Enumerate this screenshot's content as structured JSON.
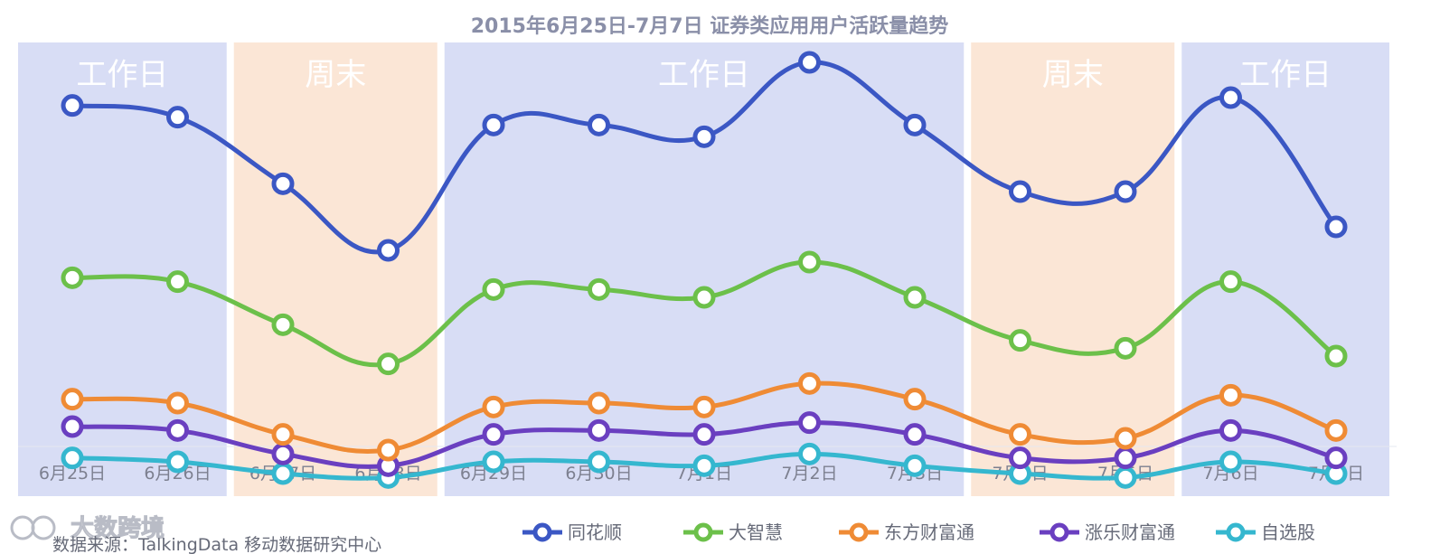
{
  "chart_data": {
    "type": "line",
    "title": "2015年6月25日-7月7日  证券类应用用户活跃量趋势",
    "categories": [
      "6月25日",
      "6月26日",
      "6月27日",
      "6月28日",
      "6月29日",
      "6月30日",
      "7月1日",
      "7月2日",
      "7月3日",
      "7月4日",
      "7月5日",
      "7月6日",
      "7月7日"
    ],
    "series": [
      {
        "name": "同花顺",
        "color": "#3b57c4",
        "values": [
          100,
          97,
          80,
          63,
          95,
          95,
          92,
          111,
          95,
          78,
          78,
          102,
          69
        ]
      },
      {
        "name": "大智慧",
        "color": "#6cc04a",
        "values": [
          56,
          55,
          44,
          34,
          53,
          53,
          51,
          60,
          51,
          40,
          38,
          55,
          36
        ]
      },
      {
        "name": "东方财富通",
        "color": "#ef8b35",
        "values": [
          25,
          24,
          16,
          12,
          23,
          24,
          23,
          29,
          25,
          16,
          15,
          26,
          17
        ]
      },
      {
        "name": "涨乐财富通",
        "color": "#6a3fc0",
        "values": [
          18,
          17,
          11,
          8,
          16,
          17,
          16,
          19,
          16,
          10,
          10,
          17,
          10
        ]
      },
      {
        "name": "自选股",
        "color": "#35b7cf",
        "values": [
          10,
          9,
          6,
          5,
          9,
          9,
          8,
          11,
          8,
          6,
          5,
          9,
          6
        ]
      }
    ],
    "bands": [
      {
        "label": "工作日",
        "type": "workday",
        "from": 0,
        "to": 1
      },
      {
        "label": "周末",
        "type": "weekend",
        "from": 2,
        "to": 3
      },
      {
        "label": "工作日",
        "type": "workday",
        "from": 4,
        "to": 8
      },
      {
        "label": "周末",
        "type": "weekend",
        "from": 9,
        "to": 10
      },
      {
        "label": "工作日",
        "type": "workday",
        "from": 11,
        "to": 12
      }
    ],
    "colors": {
      "workday": "#d8ddf5",
      "weekend": "#fbe6d6"
    },
    "ylim": [
      0,
      120
    ],
    "grid": false,
    "legend_position": "bottom"
  },
  "source": "数据来源：TalkingData 移动数据研究中心",
  "watermark": "大数跨境"
}
